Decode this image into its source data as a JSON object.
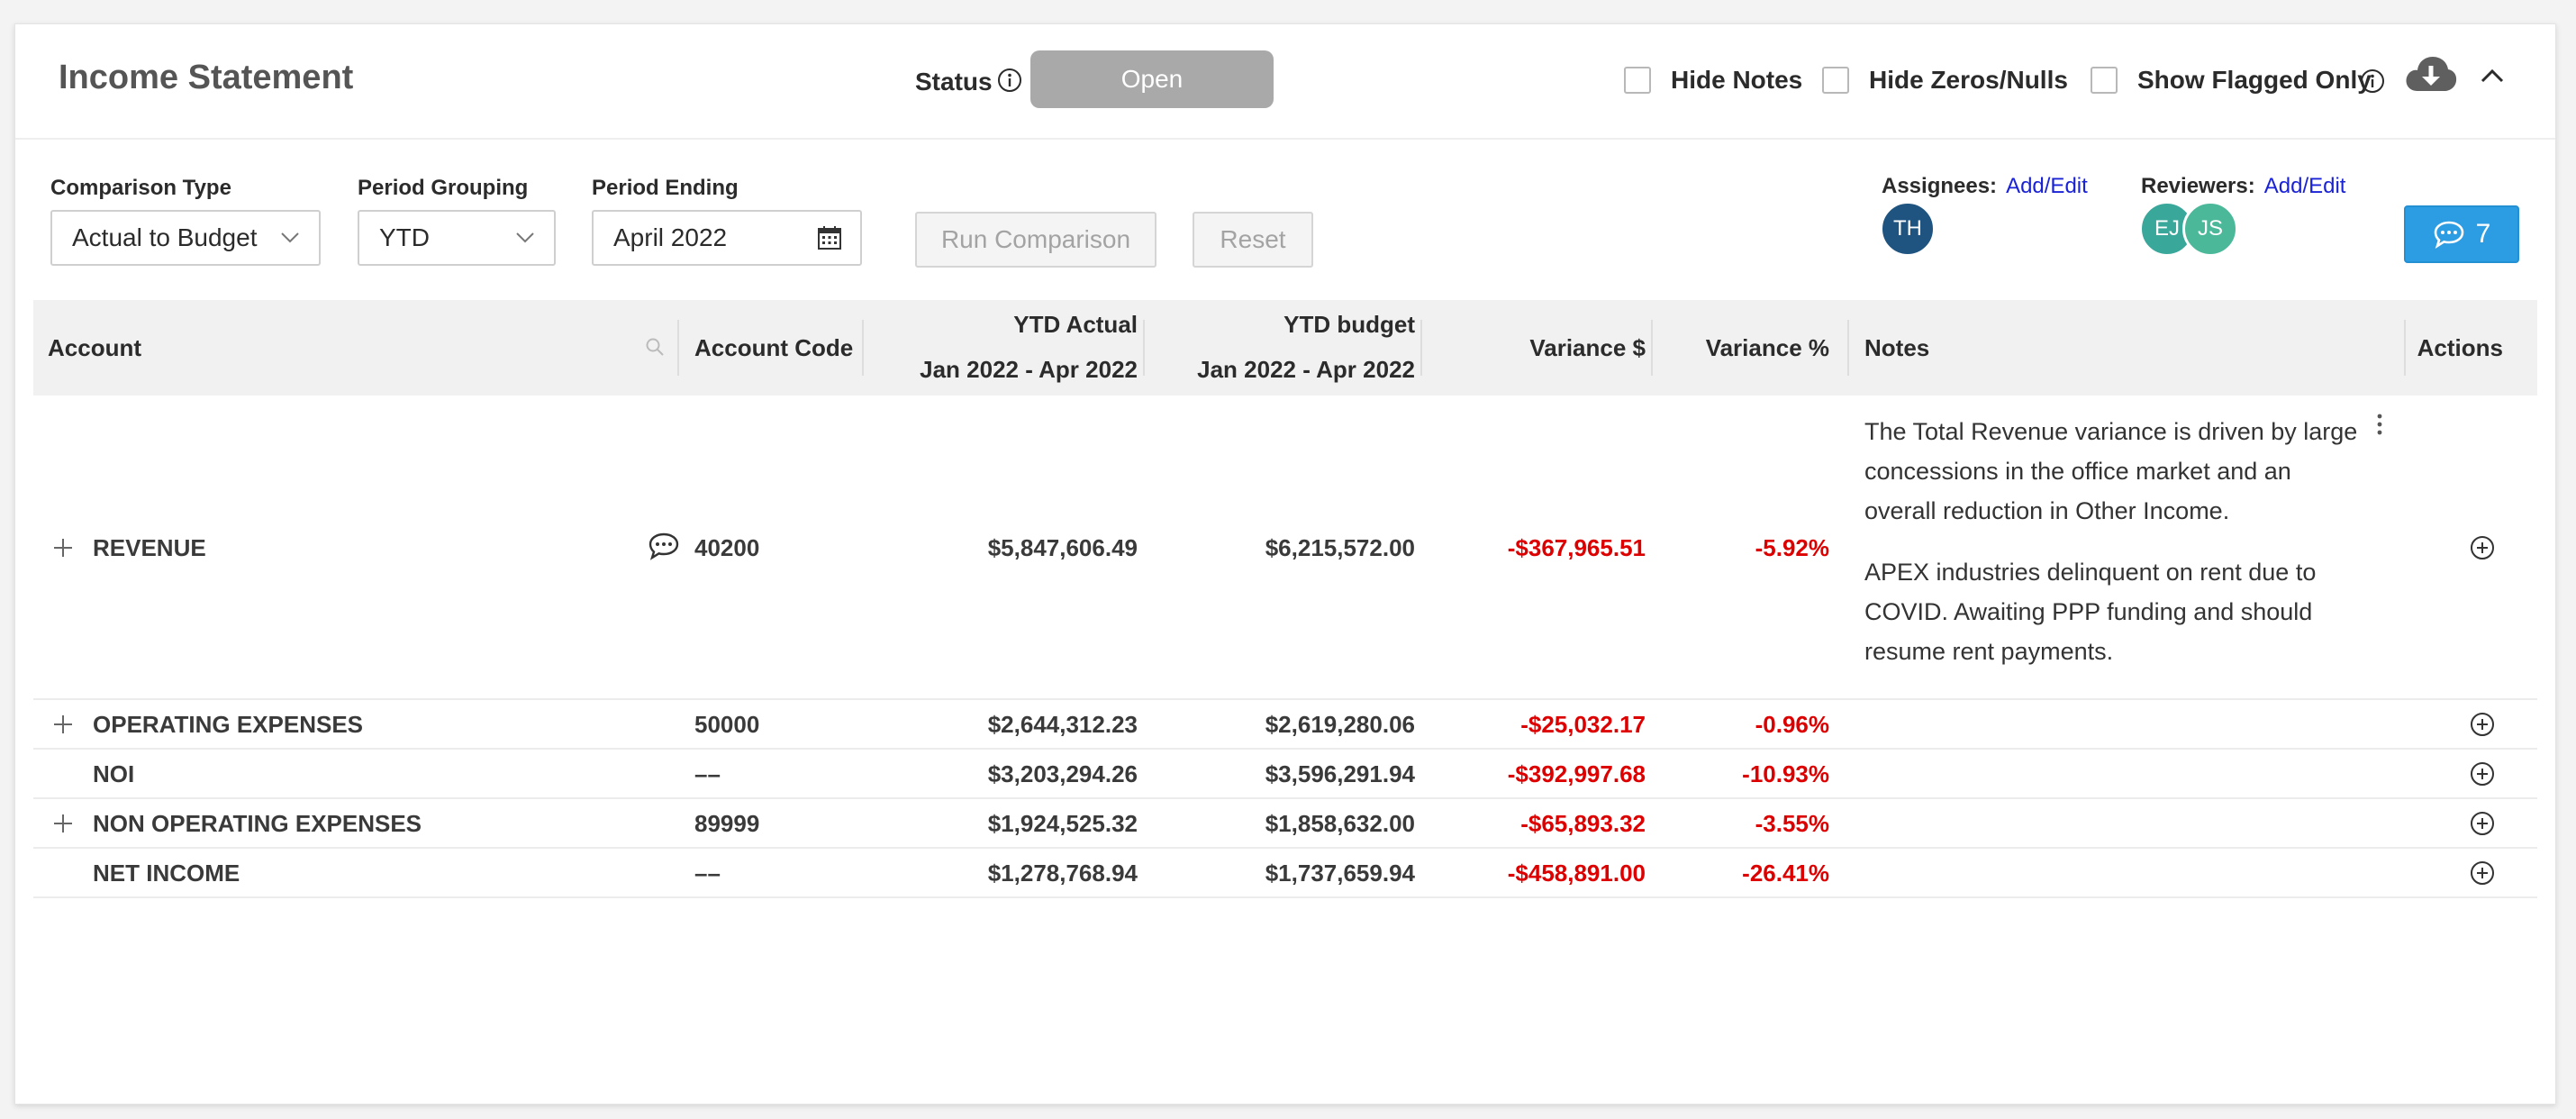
{
  "header": {
    "title": "Income Statement",
    "status_label": "Status",
    "status_value": "Open",
    "hide_notes": "Hide Notes",
    "hide_zeros": "Hide Zeros/Nulls",
    "show_flagged": "Show Flagged Only"
  },
  "filters": {
    "comparison_type_label": "Comparison Type",
    "comparison_type_value": "Actual to Budget",
    "period_grouping_label": "Period Grouping",
    "period_grouping_value": "YTD",
    "period_ending_label": "Period Ending",
    "period_ending_value": "April 2022",
    "run_comparison": "Run Comparison",
    "reset": "Reset"
  },
  "people": {
    "assignees_label": "Assignees:",
    "assignees_link": "Add/Edit",
    "assignees": [
      "TH"
    ],
    "reviewers_label": "Reviewers:",
    "reviewers_link": "Add/Edit",
    "reviewers": [
      "EJ",
      "JS"
    ],
    "comment_count": "7"
  },
  "colors": {
    "accent": "#2d9de3",
    "negative": "#dd0000",
    "avatar_th": "#1f5480",
    "avatar_ej": "#3aa79b",
    "avatar_js": "#4cb89a"
  },
  "table": {
    "headers": {
      "account": "Account",
      "account_code": "Account Code",
      "ytd_actual": "YTD Actual",
      "ytd_actual_range": "Jan 2022 - Apr 2022",
      "ytd_budget": "YTD budget",
      "ytd_budget_range": "Jan 2022 - Apr 2022",
      "variance_dollar": "Variance $",
      "variance_pct": "Variance %",
      "notes": "Notes",
      "actions": "Actions"
    },
    "rows": [
      {
        "account": "REVENUE",
        "code": "40200",
        "actual": "$5,847,606.49",
        "budget": "$6,215,572.00",
        "variance": "-$367,965.51",
        "variance_pct": "-5.92%",
        "note1": "The Total Revenue variance is driven by large concessions in the office market and an overall reduction in Other Income.",
        "note2": "APEX industries delinquent on rent due to COVID. Awaiting PPP funding and should resume rent payments."
      },
      {
        "account": "OPERATING EXPENSES",
        "code": "50000",
        "actual": "$2,644,312.23",
        "budget": "$2,619,280.06",
        "variance": "-$25,032.17",
        "variance_pct": "-0.96%"
      },
      {
        "account": "NOI",
        "code": "––",
        "actual": "$3,203,294.26",
        "budget": "$3,596,291.94",
        "variance": "-$392,997.68",
        "variance_pct": "-10.93%"
      },
      {
        "account": "NON OPERATING EXPENSES",
        "code": "89999",
        "actual": "$1,924,525.32",
        "budget": "$1,858,632.00",
        "variance": "-$65,893.32",
        "variance_pct": "-3.55%"
      },
      {
        "account": "NET INCOME",
        "code": "––",
        "actual": "$1,278,768.94",
        "budget": "$1,737,659.94",
        "variance": "-$458,891.00",
        "variance_pct": "-26.41%"
      }
    ]
  }
}
